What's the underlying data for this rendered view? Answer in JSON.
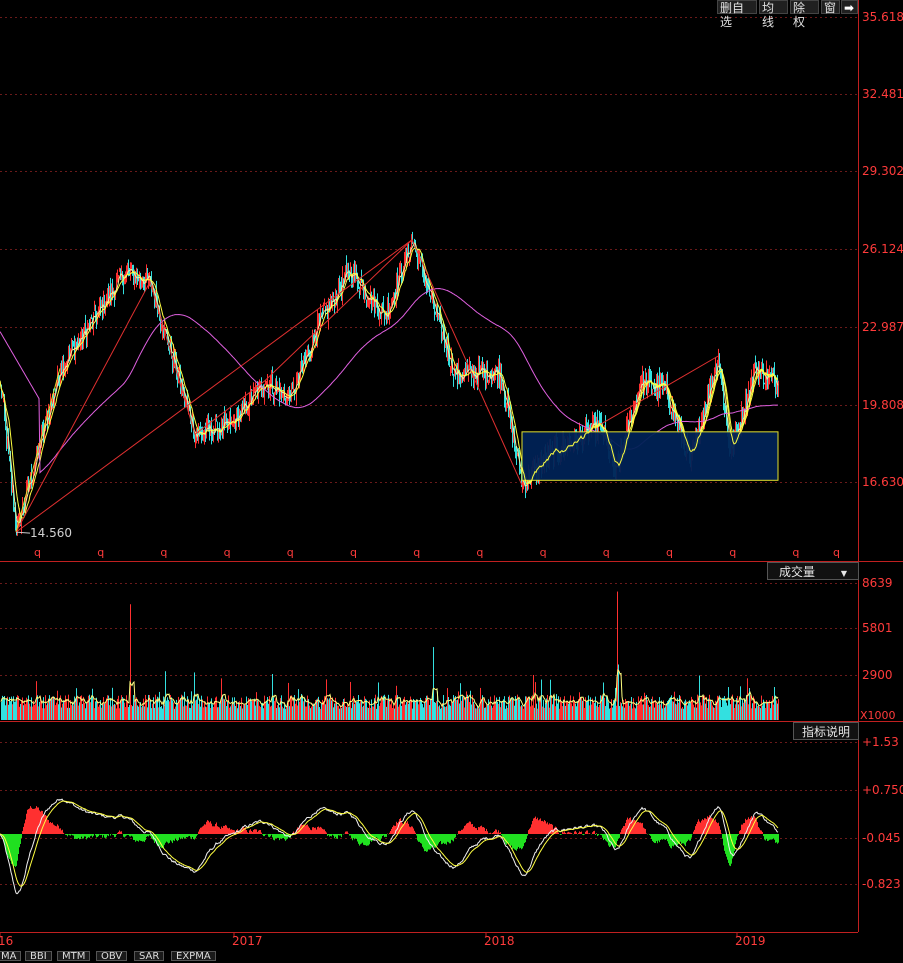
{
  "toolbar": {
    "delete_watch_label": "删自选",
    "ma_label": "均线",
    "exright_label": "除权",
    "window_label": "窗"
  },
  "volume_panel": {
    "indicator_label": "成交量",
    "unit_label": "X1000"
  },
  "osc_panel": {
    "help_label": "指标说明"
  },
  "bottom_tabs": [
    "MA",
    "BBI",
    "MTM",
    "OBV",
    "SAR",
    "EXPMA"
  ],
  "colors": {
    "up": "#ff3030",
    "down": "#33e0e0",
    "ma": "#e060e0",
    "zig": "#e0e030",
    "trend": "#e03030",
    "osc_up": "#ff3030",
    "osc_down": "#20e020",
    "box": "#002255"
  },
  "chart_data": [
    {
      "type": "candlestick",
      "name": "price",
      "ylim": [
        13.5,
        35.618
      ],
      "y_ticks": [
        "35.618",
        "32.481",
        "29.302",
        "26.124",
        "22.987",
        "19.808",
        "16.630"
      ],
      "x_ticks": [
        "16",
        "2017",
        "2018",
        "2019"
      ],
      "min_label": "14.560",
      "marker_glyph": "q",
      "key_points": [
        {
          "t": 0,
          "v": 20.8
        },
        {
          "t": 16,
          "v": 14.56
        },
        {
          "t": 60,
          "v": 21.3
        },
        {
          "t": 125,
          "v": 25.2
        },
        {
          "t": 150,
          "v": 24.8
        },
        {
          "t": 195,
          "v": 18.6
        },
        {
          "t": 230,
          "v": 18.9
        },
        {
          "t": 265,
          "v": 20.8
        },
        {
          "t": 290,
          "v": 20.0
        },
        {
          "t": 315,
          "v": 22.8
        },
        {
          "t": 350,
          "v": 25.3
        },
        {
          "t": 385,
          "v": 23.4
        },
        {
          "t": 412,
          "v": 26.5
        },
        {
          "t": 430,
          "v": 24.2
        },
        {
          "t": 455,
          "v": 21.0
        },
        {
          "t": 500,
          "v": 21.2
        },
        {
          "t": 522,
          "v": 16.5
        },
        {
          "t": 545,
          "v": 17.6
        },
        {
          "t": 600,
          "v": 19.0
        },
        {
          "t": 615,
          "v": 17.0
        },
        {
          "t": 640,
          "v": 20.7
        },
        {
          "t": 665,
          "v": 20.5
        },
        {
          "t": 690,
          "v": 17.5
        },
        {
          "t": 718,
          "v": 21.8
        },
        {
          "t": 730,
          "v": 17.8
        },
        {
          "t": 755,
          "v": 21.3
        },
        {
          "t": 778,
          "v": 20.7
        }
      ],
      "box": {
        "t0": 522,
        "t1": 778,
        "v0": 16.7,
        "v1": 18.7
      }
    },
    {
      "type": "bar",
      "name": "volume",
      "y_ticks": [
        "8639",
        "5801",
        "2900"
      ],
      "ylim": [
        0,
        8639
      ]
    },
    {
      "type": "bar",
      "name": "oscillator",
      "y_ticks": [
        "+1.53",
        "+0.750",
        "-0.045",
        "-0.823"
      ],
      "ylim": [
        -1.6,
        1.53
      ]
    }
  ]
}
